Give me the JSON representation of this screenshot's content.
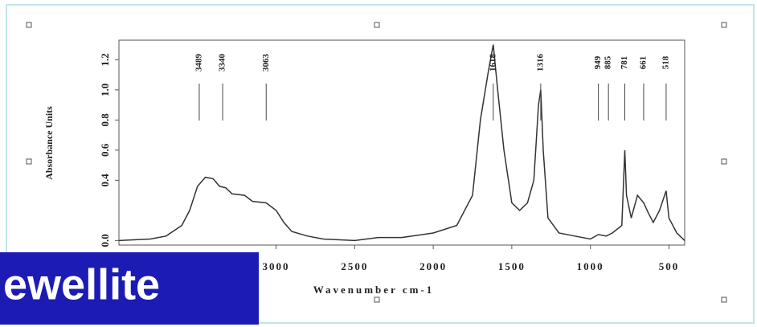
{
  "chart_data": {
    "type": "line",
    "banner": "ewellite",
    "xlabel": "Wavenumber cm-1",
    "ylabel": "Absorbance Units",
    "x": [
      4000,
      3800,
      3700,
      3600,
      3550,
      3500,
      3450,
      3400,
      3360,
      3320,
      3280,
      3200,
      3150,
      3063,
      3000,
      2950,
      2900,
      2800,
      2700,
      2500,
      2350,
      2200,
      2000,
      1850,
      1750,
      1700,
      1650,
      1618,
      1590,
      1550,
      1500,
      1450,
      1400,
      1360,
      1330,
      1316,
      1300,
      1270,
      1200,
      1100,
      1000,
      949,
      900,
      860,
      800,
      781,
      770,
      740,
      700,
      661,
      630,
      600,
      560,
      518,
      500,
      450,
      400
    ],
    "values": [
      0.0,
      0.01,
      0.03,
      0.1,
      0.2,
      0.36,
      0.42,
      0.41,
      0.36,
      0.35,
      0.31,
      0.3,
      0.26,
      0.25,
      0.2,
      0.12,
      0.06,
      0.03,
      0.01,
      0.0,
      0.02,
      0.02,
      0.05,
      0.1,
      0.3,
      0.8,
      1.12,
      1.3,
      1.0,
      0.6,
      0.25,
      0.2,
      0.25,
      0.4,
      0.9,
      1.0,
      0.6,
      0.15,
      0.05,
      0.03,
      0.01,
      0.04,
      0.03,
      0.05,
      0.1,
      0.6,
      0.3,
      0.15,
      0.3,
      0.25,
      0.18,
      0.12,
      0.2,
      0.33,
      0.15,
      0.05,
      0.0
    ],
    "color": "#333333",
    "xlim": [
      4000,
      400
    ],
    "xticks": [
      3000,
      2500,
      2000,
      1500,
      1000,
      500
    ],
    "ylim": [
      -0.03,
      1.33
    ],
    "yticks": [
      {
        "value": 0.0,
        "label": "0.0"
      },
      0.4,
      0.6,
      0.8,
      {
        "value": 1.0,
        "label": "1.0"
      },
      1.2
    ],
    "annotations": [
      3489,
      3340,
      3063,
      1618,
      1316,
      949,
      885,
      781,
      661,
      518
    ]
  }
}
